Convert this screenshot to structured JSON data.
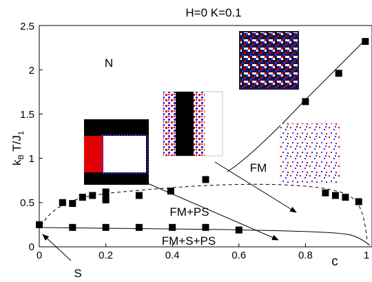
{
  "chart_data": {
    "type": "scatter",
    "title": "H=0 K=0.1",
    "xlabel": "c",
    "ylabel": "k",
    "ylabel_sub1": "B",
    "ylabel_mid": " T/J",
    "ylabel_sub2": "1",
    "xlim": [
      0,
      1
    ],
    "ylim": [
      0,
      2.5
    ],
    "x_ticks": [
      "0",
      "0.2",
      "0.4",
      "0.6",
      "0.8",
      "1"
    ],
    "y_ticks": [
      "0",
      "0.5",
      "1",
      "1.5",
      "2",
      "2.5"
    ],
    "region_labels": [
      "N",
      "FM",
      "FM+PS",
      "FM+S+PS",
      "S"
    ],
    "series": [
      {
        "x": [
          0.98,
          0.9,
          0.8,
          0.5,
          0.395,
          0.3,
          0.2,
          0.2,
          0.2,
          0.16,
          0.13,
          0.1,
          0.07,
          0.86,
          0.89,
          0.92,
          0.96
        ],
        "y": [
          2.32,
          1.96,
          1.64,
          0.76,
          0.63,
          0.58,
          0.62,
          0.56,
          0.53,
          0.58,
          0.56,
          0.49,
          0.5,
          0.61,
          0.58,
          0.56,
          0.51
        ]
      },
      {
        "x": [
          0.0,
          0.1,
          0.2,
          0.3,
          0.4,
          0.5,
          0.6
        ],
        "y": [
          0.25,
          0.22,
          0.22,
          0.22,
          0.22,
          0.22,
          0.19
        ]
      }
    ],
    "grid": false
  }
}
